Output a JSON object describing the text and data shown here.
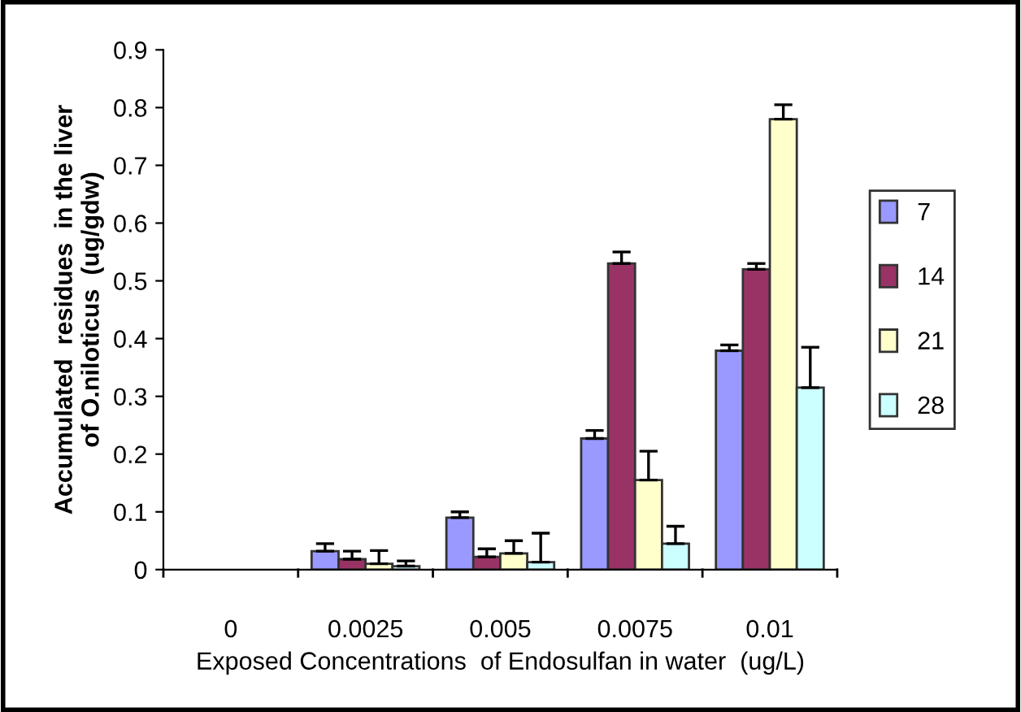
{
  "chart_data": {
    "type": "bar",
    "xlabel": "Exposed Concentrations  of Endosulfan in water  (ug/L)",
    "ylabel": "Accumulated  residues  in the liver\nof O.niloticus  (ug/gdw)",
    "categories": [
      "0",
      "0.0025",
      "0.005",
      "0.0075",
      "0.01"
    ],
    "series": [
      {
        "name": "7",
        "color": "#9999ff",
        "values": [
          null,
          0.032,
          0.09,
          0.227,
          0.379
        ],
        "errors": [
          null,
          0.013,
          0.01,
          0.014,
          0.01
        ]
      },
      {
        "name": "14",
        "color": "#993366",
        "values": [
          null,
          0.018,
          0.022,
          0.53,
          0.52
        ],
        "errors": [
          null,
          0.014,
          0.014,
          0.02,
          0.01
        ]
      },
      {
        "name": "21",
        "color": "#ffffcc",
        "values": [
          null,
          0.01,
          0.028,
          0.155,
          0.78
        ],
        "errors": [
          null,
          0.023,
          0.022,
          0.05,
          0.025
        ]
      },
      {
        "name": "28",
        "color": "#ccffff",
        "values": [
          null,
          0.006,
          0.013,
          0.045,
          0.315
        ],
        "errors": [
          null,
          0.009,
          0.05,
          0.03,
          0.07
        ]
      }
    ],
    "ylim": [
      0,
      0.9
    ],
    "yticks": [
      0,
      0.1,
      0.2,
      0.3,
      0.4,
      0.5,
      0.6,
      0.7,
      0.8,
      0.9
    ],
    "grid": false,
    "legend": "right"
  }
}
